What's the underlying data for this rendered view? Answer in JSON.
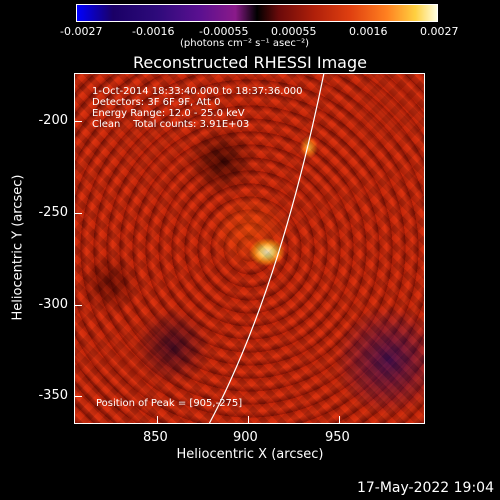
{
  "colorbar": {
    "ticks": [
      "-0.0027",
      "-0.0016",
      "-0.00055",
      "0.00055",
      "0.0016",
      "0.0027"
    ],
    "units": "(photons cm⁻² s⁻¹ asec⁻²)"
  },
  "title": "Reconstructed RHESSI Image",
  "info": {
    "time": "1-Oct-2014 18:33:40.000 to 18:37:36.000",
    "detectors": "Detectors: 3F 6F 9F, Att 0",
    "energy": "Energy Range: 12.0 - 25.0 keV",
    "method": "Clean    Total counts: 3.91E+03"
  },
  "peak": "Position of Peak = [905,-275]",
  "axes": {
    "xlabel": "Heliocentric X (arcsec)",
    "ylabel": "Heliocentric Y (arcsec)",
    "xticks": [
      "850",
      "900",
      "950"
    ],
    "yticks": [
      "-200",
      "-250",
      "-300",
      "-350"
    ]
  },
  "timestamp": "17-May-2022 19:04"
}
